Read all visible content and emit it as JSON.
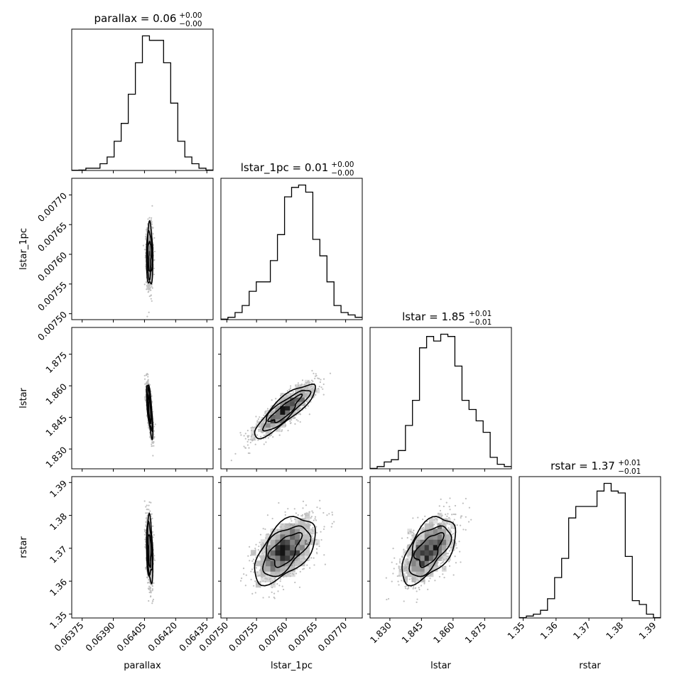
{
  "chart_data": {
    "type": "corner",
    "parameters": [
      {
        "name": "parallax",
        "range": [
          0.0637,
          0.06438
        ],
        "ticks": [
          "0.06375",
          "0.06390",
          "0.06405",
          "0.06420",
          "0.06435"
        ],
        "title": {
          "main": "parallax = 0.06",
          "sup": "+0.00",
          "sub": "−0.00"
        }
      },
      {
        "name": "lstar_1pc",
        "range": [
          0.00749,
          0.007728
        ],
        "ticks": [
          "0.00750",
          "0.00755",
          "0.00760",
          "0.00765",
          "0.00770"
        ],
        "title": {
          "main": "lstar_1pc = 0.01",
          "sup": "+0.00",
          "sub": "−0.00"
        }
      },
      {
        "name": "lstar",
        "range": [
          1.8206,
          1.8877
        ],
        "ticks": [
          "1.830",
          "1.845",
          "1.860",
          "1.875"
        ],
        "title": {
          "main": "lstar = 1.85",
          "sup": "+0.01",
          "sub": "−0.01"
        }
      },
      {
        "name": "rstar",
        "range": [
          1.3488,
          1.3918
        ],
        "ticks": [
          "1.35",
          "1.36",
          "1.37",
          "1.38",
          "1.39"
        ],
        "title": {
          "main": "rstar = 1.37",
          "sup": "+0.01",
          "sub": "−0.01"
        }
      }
    ],
    "histograms": [
      [
        0.5,
        1,
        5,
        5,
        15,
        30,
        65,
        105,
        170,
        240,
        300,
        290,
        290,
        240,
        150,
        65,
        30,
        15,
        5,
        1
      ],
      [
        1,
        5,
        15,
        30,
        60,
        80,
        80,
        125,
        180,
        260,
        280,
        285,
        270,
        170,
        135,
        80,
        30,
        15,
        10,
        5
      ],
      [
        1,
        5,
        15,
        20,
        40,
        95,
        150,
        265,
        290,
        280,
        295,
        290,
        225,
        150,
        130,
        105,
        80,
        25,
        10,
        5
      ],
      [
        1,
        5,
        10,
        20,
        50,
        105,
        155,
        260,
        290,
        290,
        290,
        330,
        350,
        330,
        325,
        160,
        45,
        35,
        10,
        1
      ]
    ],
    "pairs": [
      {
        "x": 0,
        "y": 1,
        "mean": [
          0.064075,
          0.007598
        ],
        "sd": [
          7.5e-06,
          2.5e-05
        ],
        "rho": -0.05
      },
      {
        "x": 0,
        "y": 2,
        "mean": [
          0.064075,
          1.8485
        ],
        "sd": [
          7.5e-06,
          0.0062
        ],
        "rho": -0.72
      },
      {
        "x": 1,
        "y": 2,
        "mean": [
          0.007598,
          1.8485
        ],
        "sd": [
          2.5e-05,
          0.0062
        ],
        "rho": 0.86
      },
      {
        "x": 0,
        "y": 3,
        "mean": [
          0.064075,
          1.3695
        ],
        "sd": [
          7.5e-06,
          0.0049
        ],
        "rho": -0.3
      },
      {
        "x": 1,
        "y": 3,
        "mean": [
          0.007598,
          1.3695
        ],
        "sd": [
          2.5e-05,
          0.0049
        ],
        "rho": 0.55
      },
      {
        "x": 2,
        "y": 3,
        "mean": [
          1.8485,
          1.3695
        ],
        "sd": [
          0.0062,
          0.0049
        ],
        "rho": 0.55
      }
    ]
  }
}
